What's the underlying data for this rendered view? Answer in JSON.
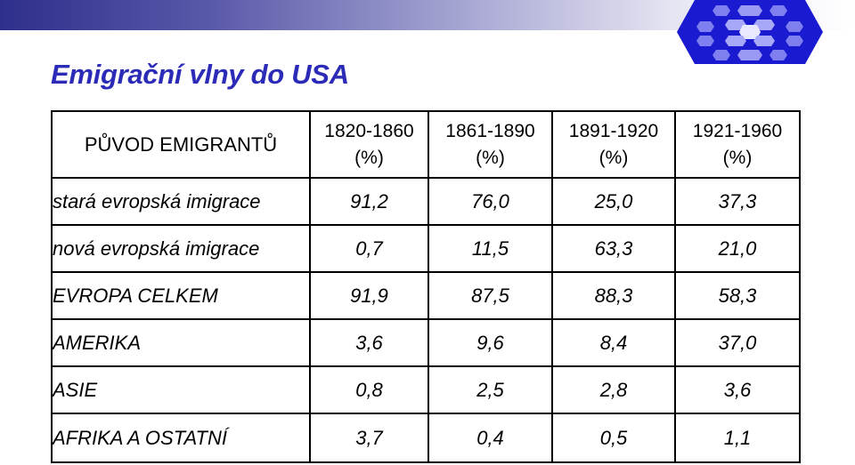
{
  "title": "Emigrační vlny do USA",
  "table": {
    "origin_header": "PŮVOD EMIGRANTŮ",
    "periods": [
      {
        "years": "1820-1860",
        "unit": "(%)"
      },
      {
        "years": "1861-1890",
        "unit": "(%)"
      },
      {
        "years": "1891-1920",
        "unit": "(%)"
      },
      {
        "years": "1921-1960",
        "unit": "(%)"
      }
    ],
    "rows": [
      {
        "label": "stará evropská imigrace",
        "values": [
          "91,2",
          "76,0",
          "25,0",
          "37,3"
        ]
      },
      {
        "label": "nová evropská imigrace",
        "values": [
          "0,7",
          "11,5",
          "63,3",
          "21,0"
        ]
      },
      {
        "label": "EVROPA CELKEM",
        "values": [
          "91,9",
          "87,5",
          "88,3",
          "58,3"
        ]
      },
      {
        "label": "AMERIKA",
        "values": [
          "3,6",
          "9,6",
          "8,4",
          "37,0"
        ]
      },
      {
        "label": "ASIE",
        "values": [
          "0,8",
          "2,5",
          "2,8",
          "3,6"
        ]
      },
      {
        "label": "AFRIKA A OSTATNÍ",
        "values": [
          "3,7",
          "0,4",
          "0,5",
          "1,1"
        ]
      }
    ]
  },
  "colors": {
    "title": "#2b2bb8",
    "banner_dark": "#2e2e8c",
    "logo_blue": "#1a1ad0"
  },
  "decor": {
    "banner": "gradient-banner",
    "logo": "hexagon-pattern-logo"
  }
}
